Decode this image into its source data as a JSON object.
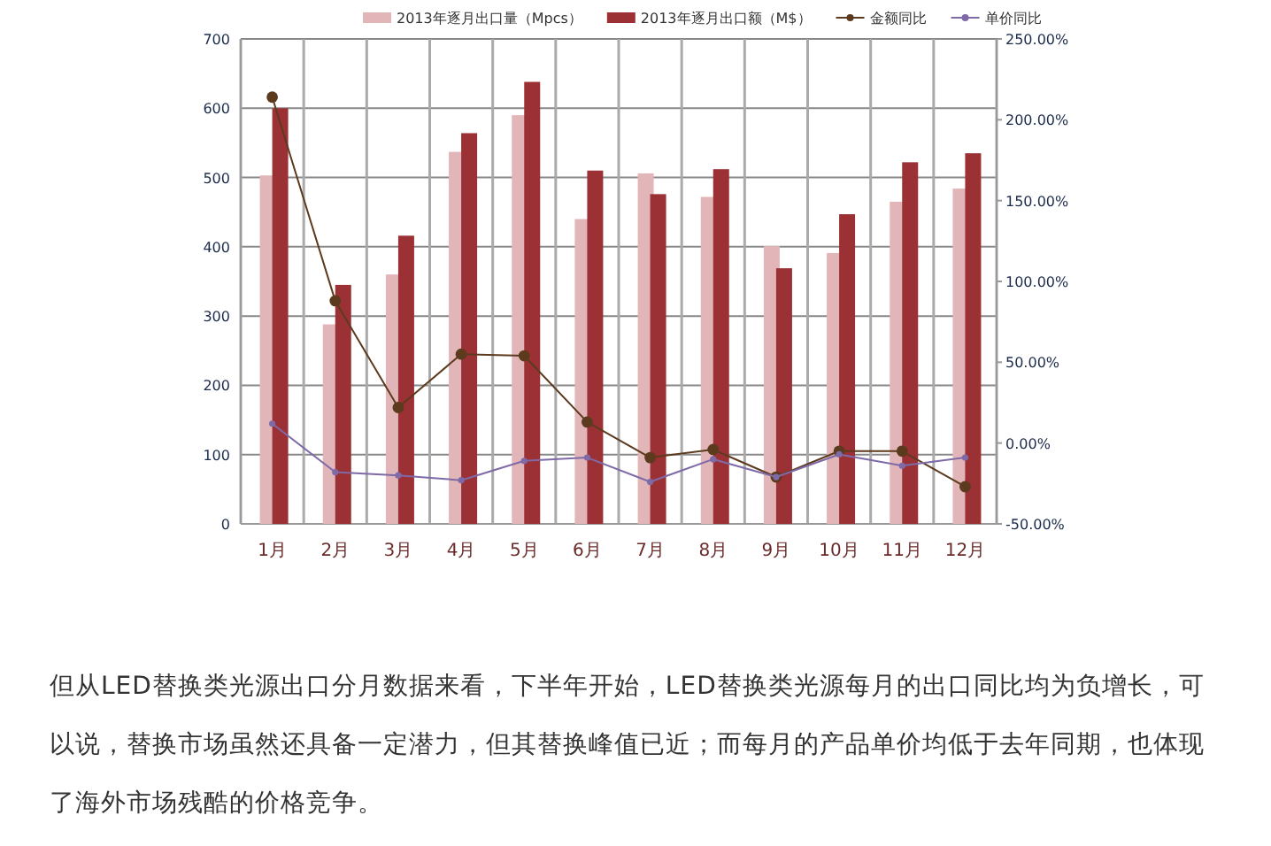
{
  "chart_data": {
    "type": "bar",
    "categories": [
      "1月",
      "2月",
      "3月",
      "4月",
      "5月",
      "6月",
      "7月",
      "8月",
      "9月",
      "10月",
      "11月",
      "12月"
    ],
    "series": [
      {
        "name": "2013年逐月出口量（Mpcs）",
        "color": "#e2b6b8",
        "values": [
          503,
          288,
          360,
          537,
          590,
          440,
          506,
          472,
          401,
          391,
          465,
          484
        ]
      },
      {
        "name": "2013年逐月出口额（M$）",
        "color": "#9b3135",
        "values": [
          600,
          345,
          416,
          564,
          638,
          510,
          476,
          512,
          369,
          447,
          522,
          535
        ]
      },
      {
        "name": "金额同比",
        "type": "line",
        "axis": "y2",
        "color": "#5c3a1e",
        "values": [
          214,
          88,
          22,
          55,
          54,
          13,
          -9,
          -4,
          -21,
          -5,
          -5,
          -27
        ]
      },
      {
        "name": "单价同比",
        "type": "line",
        "axis": "y2",
        "color": "#7f6aa8",
        "values": [
          12,
          -18,
          -20,
          -23,
          -11,
          -9,
          -24,
          -10,
          -21,
          -7,
          -14,
          -9
        ]
      }
    ],
    "ylim": [
      0,
      700
    ],
    "yticks": [
      0,
      100,
      200,
      300,
      400,
      500,
      600,
      700
    ],
    "y2lim": [
      -50,
      250
    ],
    "y2ticks": [
      {
        "value": -50,
        "label": "-50.00%"
      },
      {
        "value": 0,
        "label": "0.00%"
      },
      {
        "value": 50,
        "label": "50.00%"
      },
      {
        "value": 100,
        "label": "100.00%"
      },
      {
        "value": 150,
        "label": "150.00%"
      },
      {
        "value": 200,
        "label": "200.00%"
      },
      {
        "value": 250,
        "label": "250.00%"
      }
    ],
    "grid": true,
    "legend": "top",
    "marker": "circle",
    "annotations": [
      "但从LED替换类光源出口分月数据来看，下半年开始，LED替换类光源每月的出口同比均为负增长，可以说，替换市场虽然还具备一定潜力，但其替换峰值已近；而每月的产品单价均低于去年同期，也体现了海外市场残酷的价格竞争。"
    ]
  }
}
